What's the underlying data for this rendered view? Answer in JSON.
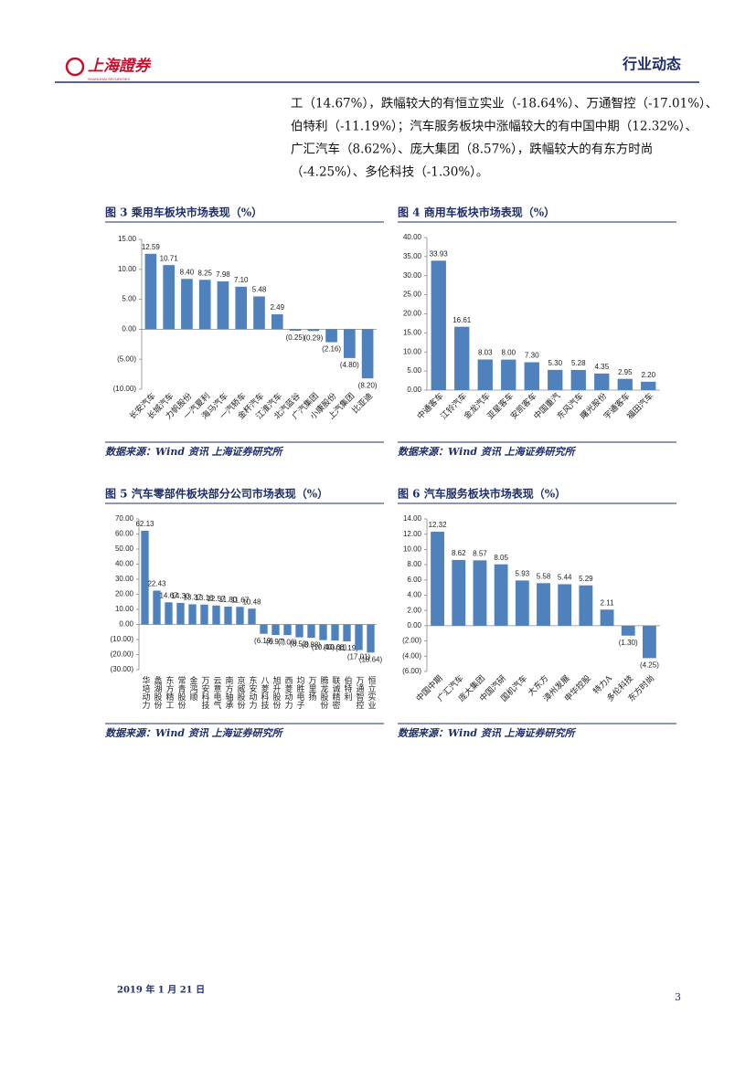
{
  "header": {
    "logo_text": "上海證券",
    "logo_subtext": "SHANGHAI SECURITIES",
    "section": "行业动态"
  },
  "paragraph": [
    "工（14.67%），跌幅较大的有恒立实业（-18.64%）、万通智控（-17.01%）、",
    "伯特利（-11.19%）；汽车服务板块中涨幅较大的有中国中期（12.32%）、",
    "广汇汽车（8.62%）、庞大集团（8.57%），跌幅较大的有东方时尚",
    "（-4.25%）、多伦科技（-1.30%）。"
  ],
  "chart_data": [
    {
      "type": "bar",
      "title": "图 3  乘用车板块市场表现（%）",
      "source": "数据来源：Wind 资讯  上海证券研究所",
      "categories": [
        "长安汽车",
        "长城汽车",
        "力帆股份",
        "一汽夏利",
        "海马汽车",
        "一汽轿车",
        "金杯汽车",
        "江淮汽车",
        "北汽蓝谷",
        "广汽集团",
        "小康股份",
        "上汽集团",
        "比亚迪"
      ],
      "values": [
        12.59,
        10.71,
        8.4,
        8.25,
        7.98,
        7.1,
        5.48,
        2.49,
        -0.25,
        -0.29,
        -2.16,
        -4.8,
        -8.2
      ],
      "value_labels": [
        "12.59",
        "10.71",
        "8.40",
        "8.25",
        "7.98",
        "7.10",
        "5.48",
        "2.49",
        "(0.25)",
        "(0.29)",
        "(2.16)",
        "(4.80)",
        "(8.20)"
      ],
      "color": "#4f81bd",
      "negative_label_color": "#e02020",
      "ylim": [
        -10,
        15
      ],
      "yticks": [
        {
          "value": 15,
          "label": "15.00"
        },
        {
          "value": 10,
          "label": "10.00"
        },
        {
          "value": 5,
          "label": "5.00"
        },
        {
          "value": 0,
          "label": "0.00"
        },
        {
          "value": -5,
          "label": "(5.00)"
        },
        {
          "value": -10,
          "label": "(10.00)"
        }
      ]
    },
    {
      "type": "bar",
      "title": "图 4  商用车板块市场表现（%）",
      "source": "数据来源：Wind 资讯  上海证券研究所",
      "categories": [
        "中通客车",
        "江铃汽车",
        "金龙汽车",
        "亚星客车",
        "安凯客车",
        "中国重汽",
        "东风汽车",
        "曙光股份",
        "宇通客车",
        "福田汽车"
      ],
      "values": [
        33.93,
        16.61,
        8.03,
        8.0,
        7.3,
        5.3,
        5.28,
        4.35,
        2.95,
        2.2
      ],
      "value_labels": [
        "33.93",
        "16.61",
        "8.03",
        "8.00",
        "7.30",
        "5.30",
        "5.28",
        "4.35",
        "2.95",
        "2.20"
      ],
      "color": "#4f81bd",
      "negative_label_color": "#e02020",
      "ylim": [
        0,
        40
      ],
      "yticks": [
        {
          "value": 40,
          "label": "40.00"
        },
        {
          "value": 35,
          "label": "35.00"
        },
        {
          "value": 30,
          "label": "30.00"
        },
        {
          "value": 25,
          "label": "25.00"
        },
        {
          "value": 20,
          "label": "20.00"
        },
        {
          "value": 15,
          "label": "15.00"
        },
        {
          "value": 10,
          "label": "10.00"
        },
        {
          "value": 5,
          "label": "5.00"
        },
        {
          "value": 0,
          "label": "0.00"
        }
      ]
    },
    {
      "type": "bar",
      "title": "图 5  汽车零部件板块部分公司市场表现（%）",
      "source": "数据来源：Wind 资讯  上海证券研究所",
      "categories": [
        "华培动力",
        "蠡湖股份",
        "东方精工",
        "常青股份",
        "金鸿顺",
        "万安科技",
        "云意电气",
        "南方轴承",
        "京威股份",
        "东安动力",
        "八菱科技",
        "旭升股份",
        "西菱动力",
        "均胜电子",
        "万里扬",
        "腾龙股份",
        "联诚精密",
        "伯特利",
        "万通智控",
        "恒立实业"
      ],
      "values": [
        62.13,
        22.43,
        14.67,
        14.3,
        13.37,
        13.16,
        12.57,
        11.8,
        11.67,
        10.48,
        -6.19,
        -6.97,
        -7.06,
        -8.52,
        -8.88,
        -10.4,
        -10.68,
        -11.19,
        -17.01,
        -18.64
      ],
      "value_labels": [
        "62.13",
        "22.43",
        "14.67",
        "14.30",
        "13.37",
        "13.16",
        "12.57",
        "11.80",
        "11.67",
        "10.48",
        "(6.19)",
        "(6.97)",
        "(7.06)",
        "(8.52)",
        "(8.88)",
        "(10.40)",
        "(10.68)",
        "(11.19)",
        "(17.01)",
        "(18.64)"
      ],
      "color": "#4f81bd",
      "negative_label_color": "#e02020",
      "ylim": [
        -30,
        70
      ],
      "yticks": [
        {
          "value": 70,
          "label": "70.00"
        },
        {
          "value": 60,
          "label": "60.00"
        },
        {
          "value": 50,
          "label": "50.00"
        },
        {
          "value": 40,
          "label": "40.00"
        },
        {
          "value": 30,
          "label": "30.00"
        },
        {
          "value": 20,
          "label": "20.00"
        },
        {
          "value": 10,
          "label": "10.00"
        },
        {
          "value": 0,
          "label": "0.00"
        },
        {
          "value": -10,
          "label": "(10.00)"
        },
        {
          "value": -20,
          "label": "(20.00)"
        },
        {
          "value": -30,
          "label": "(30.00)"
        }
      ]
    },
    {
      "type": "bar",
      "title": "图 6  汽车服务板块市场表现（%）",
      "source": "数据来源：Wind 资讯  上海证券研究所",
      "categories": [
        "中国中期",
        "广汇汽车",
        "庞大集团",
        "中国汽研",
        "国机汽车",
        "大东方",
        "漳州发展",
        "申华控股",
        "特力A",
        "多伦科技",
        "东方时尚"
      ],
      "values": [
        12.32,
        8.62,
        8.57,
        8.05,
        5.93,
        5.58,
        5.44,
        5.29,
        2.11,
        -1.3,
        -4.25
      ],
      "value_labels": [
        "12.32",
        "8.62",
        "8.57",
        "8.05",
        "5.93",
        "5.58",
        "5.44",
        "5.29",
        "2.11",
        "(1.30)",
        "(4.25)"
      ],
      "color": "#4f81bd",
      "negative_label_color": "#e02020",
      "ylim": [
        -6,
        14
      ],
      "yticks": [
        {
          "value": 14,
          "label": "14.00"
        },
        {
          "value": 12,
          "label": "12.00"
        },
        {
          "value": 10,
          "label": "10.00"
        },
        {
          "value": 8,
          "label": "8.00"
        },
        {
          "value": 6,
          "label": "6.00"
        },
        {
          "value": 4,
          "label": "4.00"
        },
        {
          "value": 2,
          "label": "2.00"
        },
        {
          "value": 0,
          "label": "0.00"
        },
        {
          "value": -2,
          "label": "(2.00)"
        },
        {
          "value": -4,
          "label": "(4.00)"
        },
        {
          "value": -6,
          "label": "(6.00)"
        }
      ]
    }
  ],
  "footer": {
    "date": "2019 年 1 月 21 日",
    "page": "3"
  }
}
